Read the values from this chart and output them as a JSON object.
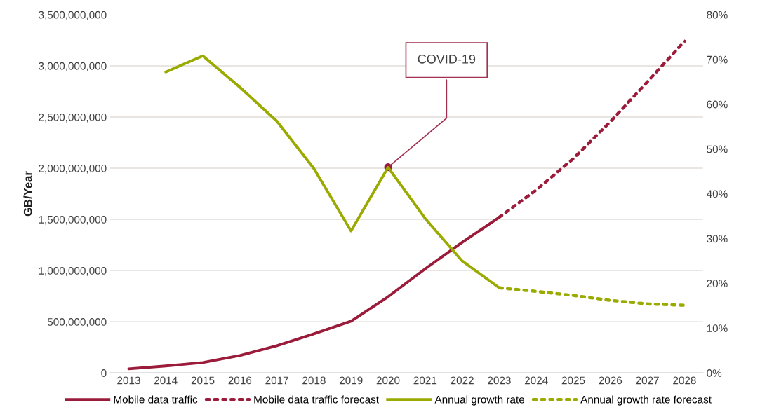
{
  "chart_data": {
    "type": "line",
    "ylabel": "GB/Year",
    "categories": [
      "2013",
      "2014",
      "2015",
      "2016",
      "2017",
      "2018",
      "2019",
      "2020",
      "2021",
      "2022",
      "2023",
      "2024",
      "2025",
      "2026",
      "2027",
      "2028"
    ],
    "series": [
      {
        "name": "Mobile data traffic",
        "color": "#9b1b3a",
        "line_style": "solid",
        "values": [
          40000000,
          68000000,
          102000000,
          170000000,
          266000000,
          382000000,
          505000000,
          744000000,
          1016000000,
          1276000000,
          1521000000,
          null,
          null,
          null,
          null,
          null
        ]
      },
      {
        "name": "Mobile data traffic forecast",
        "color": "#9b1b3a",
        "line_style": "dotted",
        "values": [
          null,
          null,
          null,
          null,
          null,
          null,
          null,
          null,
          null,
          null,
          1521000000,
          1787000000,
          2094000000,
          2455000000,
          2844000000,
          3240000000
        ]
      },
      {
        "name": "Annual growth rate",
        "color": "#9aaa00",
        "line_style": "solid",
        "axis": "y2",
        "values": [
          null,
          67.2,
          70.8,
          63.8,
          56.2,
          45.6,
          31.7,
          45.9,
          34.5,
          25.0,
          19.0,
          null,
          null,
          null,
          null,
          null
        ]
      },
      {
        "name": "Annual growth rate forecast",
        "color": "#9aaa00",
        "line_style": "dotted",
        "axis": "y2",
        "values": [
          null,
          null,
          null,
          null,
          null,
          null,
          null,
          null,
          null,
          null,
          19.0,
          18.2,
          17.3,
          16.2,
          15.4,
          15.1
        ]
      }
    ],
    "ylim": [
      0,
      3500000000
    ],
    "yticks": [
      {
        "value": 0,
        "label": "0"
      },
      {
        "value": 500000000,
        "label": "500,000,000"
      },
      {
        "value": 1000000000,
        "label": "1,000,000,000"
      },
      {
        "value": 1500000000,
        "label": "1,500,000,000"
      },
      {
        "value": 2000000000,
        "label": "2,000,000,000"
      },
      {
        "value": 2500000000,
        "label": "2,500,000,000"
      },
      {
        "value": 3000000000,
        "label": "3,000,000,000"
      },
      {
        "value": 3500000000,
        "label": "3,500,000,000"
      }
    ],
    "y2lim": [
      0,
      80
    ],
    "y2ticks": [
      {
        "value": 0,
        "label": "0%"
      },
      {
        "value": 10,
        "label": "10%"
      },
      {
        "value": 20,
        "label": "20%"
      },
      {
        "value": 30,
        "label": "30%"
      },
      {
        "value": 40,
        "label": "40%"
      },
      {
        "value": 50,
        "label": "50%"
      },
      {
        "value": 60,
        "label": "60%"
      },
      {
        "value": 70,
        "label": "70%"
      },
      {
        "value": 80,
        "label": "80%"
      }
    ],
    "annotations": [
      {
        "text": "COVID-19",
        "x": "2020",
        "y": 2010000000
      }
    ],
    "grid": "y",
    "legend": "bottom",
    "marker": "none"
  }
}
